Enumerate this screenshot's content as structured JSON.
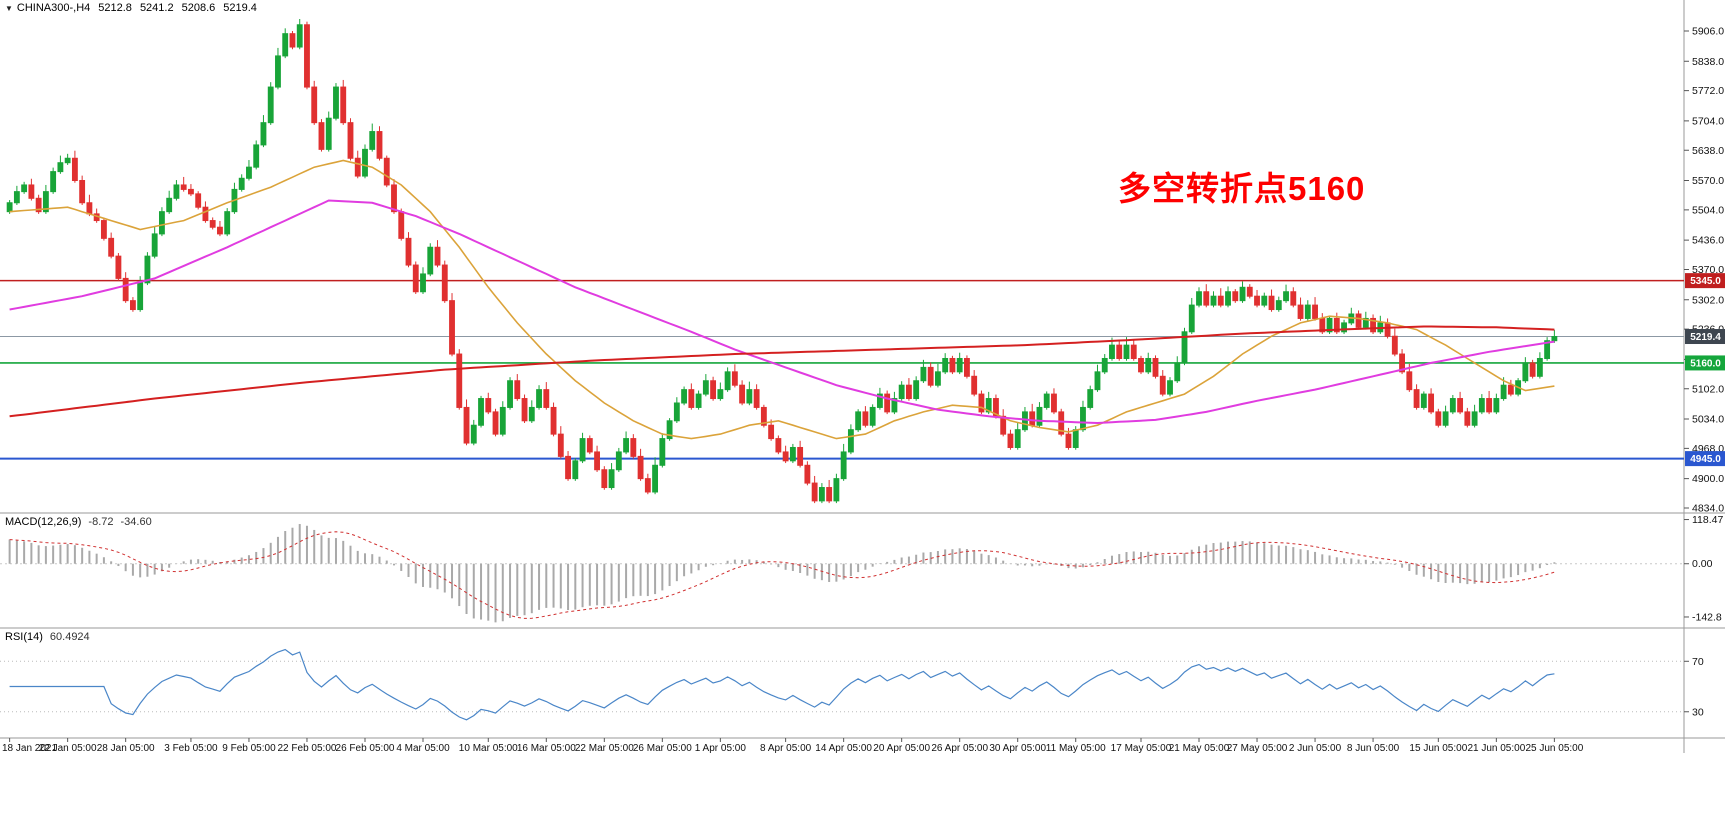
{
  "header": {
    "symbol": "CHINA300-,H4",
    "open": "5212.8",
    "high": "5241.2",
    "low": "5208.6",
    "close": "5219.4"
  },
  "annotation": {
    "text": "多空转折点5160",
    "color": "#fe0000"
  },
  "indicators": {
    "macd": {
      "label": "MACD(12,26,9)",
      "value": "-8.72",
      "signal_value": "-34.60",
      "ticks": [
        "118.47",
        "0.00",
        "-142.8"
      ],
      "tick_values": [
        118.47,
        0,
        -142.8
      ],
      "range": [
        -167,
        128
      ]
    },
    "rsi": {
      "label": "RSI(14)",
      "value": "60.4924",
      "ticks": [
        "70",
        "30"
      ],
      "tick_values": [
        70,
        30
      ],
      "range": [
        10,
        94
      ]
    }
  },
  "price_axis": {
    "ticks": [
      5906,
      5838,
      5772,
      5704,
      5638,
      5570,
      5504,
      5436,
      5370,
      5302,
      5236,
      5168,
      5102,
      5034,
      4968,
      4900,
      4834
    ],
    "max": 5906,
    "min": 4834
  },
  "levels": [
    {
      "label": "5345.0",
      "value": 5345.0,
      "color": "#c01f1f",
      "width": 1.6
    },
    {
      "label": "5219.4",
      "value": 5219.4,
      "color": "#8c98a4",
      "width": 1,
      "badge_color": "#3e4650"
    },
    {
      "label": "5160.0",
      "value": 5160.0,
      "color": "#15a63c",
      "width": 1.6
    },
    {
      "label": "4945.0",
      "value": 4945.0,
      "color": "#2a57d0",
      "width": 2
    }
  ],
  "time_axis": {
    "labels": [
      "18 Jan 2021",
      "22 Jan 05:00",
      "28 Jan 05:00",
      "3 Feb 05:00",
      "9 Feb 05:00",
      "22 Feb 05:00",
      "26 Feb 05:00",
      "4 Mar 05:00",
      "10 Mar 05:00",
      "16 Mar 05:00",
      "22 Mar 05:00",
      "26 Mar 05:00",
      "1 Apr 05:00",
      "8 Apr 05:00",
      "14 Apr 05:00",
      "20 Apr 05:00",
      "26 Apr 05:00",
      "30 Apr 05:00",
      "11 May 05:00",
      "17 May 05:00",
      "21 May 05:00",
      "27 May 05:00",
      "2 Jun 05:00",
      "8 Jun 05:00",
      "15 Jun 05:00",
      "21 Jun 05:00",
      "25 Jun 05:00"
    ]
  },
  "colors": {
    "up": "#18a438",
    "down": "#e03030",
    "macd_hist": "#a9a9a9",
    "macd_signal": "#d03030",
    "rsi_line": "#4a86c8"
  },
  "chart_data": {
    "type": "candlestick",
    "symbol": "CHINA300-",
    "timeframe": "H4",
    "title": "CHINA300- H4 candlestick chart with MACD(12,26,9) and RSI(14)",
    "ylim": [
      4834,
      5906
    ],
    "last_ohlc": {
      "open": 5212.8,
      "high": 5241.2,
      "low": 5208.6,
      "close": 5219.4
    },
    "key_levels": {
      "resistance_red": 5345.0,
      "current_price": 5219.4,
      "pivot_green": 5160.0,
      "support_blue": 4945.0
    },
    "closes": [
      5520,
      5545,
      5560,
      5530,
      5500,
      5545,
      5590,
      5610,
      5620,
      5570,
      5520,
      5495,
      5480,
      5440,
      5400,
      5350,
      5300,
      5280,
      5340,
      5400,
      5450,
      5500,
      5530,
      5560,
      5550,
      5540,
      5510,
      5480,
      5465,
      5450,
      5500,
      5550,
      5575,
      5600,
      5650,
      5700,
      5780,
      5850,
      5900,
      5870,
      5920,
      5780,
      5700,
      5640,
      5710,
      5780,
      5700,
      5620,
      5580,
      5640,
      5680,
      5620,
      5560,
      5500,
      5440,
      5380,
      5320,
      5360,
      5420,
      5380,
      5300,
      5180,
      5060,
      4980,
      5020,
      5080,
      5050,
      5000,
      5060,
      5120,
      5080,
      5030,
      5060,
      5100,
      5060,
      5000,
      4950,
      4900,
      4940,
      4990,
      4960,
      4920,
      4880,
      4920,
      4960,
      4990,
      4950,
      4900,
      4870,
      4930,
      4990,
      5030,
      5070,
      5100,
      5060,
      5090,
      5120,
      5080,
      5100,
      5140,
      5110,
      5070,
      5100,
      5060,
      5020,
      4990,
      4960,
      4940,
      4970,
      4930,
      4890,
      4850,
      4880,
      4850,
      4900,
      4960,
      5010,
      5050,
      5020,
      5060,
      5090,
      5050,
      5080,
      5110,
      5080,
      5120,
      5150,
      5110,
      5140,
      5170,
      5140,
      5170,
      5130,
      5090,
      5050,
      5080,
      5040,
      5000,
      4970,
      5010,
      5050,
      5020,
      5060,
      5090,
      5050,
      5000,
      4970,
      5010,
      5060,
      5100,
      5140,
      5170,
      5200,
      5170,
      5200,
      5170,
      5140,
      5170,
      5130,
      5090,
      5120,
      5160,
      5230,
      5290,
      5320,
      5290,
      5310,
      5290,
      5320,
      5300,
      5330,
      5310,
      5290,
      5310,
      5280,
      5300,
      5320,
      5290,
      5260,
      5290,
      5260,
      5230,
      5260,
      5230,
      5250,
      5270,
      5240,
      5260,
      5230,
      5250,
      5220,
      5180,
      5140,
      5100,
      5060,
      5090,
      5050,
      5020,
      5050,
      5080,
      5050,
      5020,
      5050,
      5080,
      5050,
      5080,
      5110,
      5090,
      5120,
      5160,
      5130,
      5170,
      5210,
      5219.4
    ],
    "moving_averages": [
      {
        "name": "ma-fast-orange",
        "color": "#dba33a",
        "width": 1.6,
        "anchors": [
          [
            0,
            5500
          ],
          [
            8,
            5510
          ],
          [
            14,
            5480
          ],
          [
            18,
            5460
          ],
          [
            24,
            5480
          ],
          [
            30,
            5520
          ],
          [
            36,
            5555
          ],
          [
            42,
            5600
          ],
          [
            46,
            5615
          ],
          [
            50,
            5600
          ],
          [
            54,
            5560
          ],
          [
            58,
            5500
          ],
          [
            62,
            5420
          ],
          [
            66,
            5330
          ],
          [
            70,
            5250
          ],
          [
            74,
            5180
          ],
          [
            78,
            5120
          ],
          [
            82,
            5070
          ],
          [
            86,
            5030
          ],
          [
            90,
            5000
          ],
          [
            94,
            4990
          ],
          [
            98,
            5000
          ],
          [
            102,
            5020
          ],
          [
            106,
            5030
          ],
          [
            110,
            5010
          ],
          [
            114,
            4990
          ],
          [
            118,
            5000
          ],
          [
            122,
            5030
          ],
          [
            126,
            5050
          ],
          [
            130,
            5065
          ],
          [
            134,
            5060
          ],
          [
            138,
            5030
          ],
          [
            142,
            5015
          ],
          [
            146,
            5005
          ],
          [
            150,
            5020
          ],
          [
            154,
            5050
          ],
          [
            158,
            5070
          ],
          [
            162,
            5090
          ],
          [
            166,
            5130
          ],
          [
            170,
            5180
          ],
          [
            174,
            5220
          ],
          [
            178,
            5250
          ],
          [
            182,
            5265
          ],
          [
            186,
            5260
          ],
          [
            190,
            5250
          ],
          [
            194,
            5235
          ],
          [
            198,
            5200
          ],
          [
            202,
            5160
          ],
          [
            206,
            5120
          ],
          [
            209,
            5098
          ],
          [
            213,
            5108
          ]
        ]
      },
      {
        "name": "ma-mid-magenta",
        "color": "#e03ce0",
        "width": 2,
        "anchors": [
          [
            0,
            5280
          ],
          [
            10,
            5310
          ],
          [
            20,
            5350
          ],
          [
            30,
            5420
          ],
          [
            38,
            5480
          ],
          [
            44,
            5525
          ],
          [
            50,
            5520
          ],
          [
            56,
            5490
          ],
          [
            62,
            5450
          ],
          [
            70,
            5390
          ],
          [
            78,
            5330
          ],
          [
            86,
            5280
          ],
          [
            94,
            5230
          ],
          [
            100,
            5190
          ],
          [
            107,
            5150
          ],
          [
            114,
            5110
          ],
          [
            121,
            5080
          ],
          [
            128,
            5055
          ],
          [
            135,
            5040
          ],
          [
            142,
            5030
          ],
          [
            150,
            5025
          ],
          [
            158,
            5032
          ],
          [
            165,
            5050
          ],
          [
            172,
            5075
          ],
          [
            180,
            5100
          ],
          [
            188,
            5130
          ],
          [
            196,
            5160
          ],
          [
            204,
            5185
          ],
          [
            213,
            5208
          ]
        ]
      },
      {
        "name": "ma-slow-red",
        "color": "#d42020",
        "width": 2,
        "anchors": [
          [
            0,
            5040
          ],
          [
            20,
            5080
          ],
          [
            40,
            5115
          ],
          [
            60,
            5145
          ],
          [
            80,
            5165
          ],
          [
            100,
            5180
          ],
          [
            120,
            5190
          ],
          [
            140,
            5200
          ],
          [
            155,
            5212
          ],
          [
            170,
            5226
          ],
          [
            185,
            5236
          ],
          [
            195,
            5242
          ],
          [
            205,
            5240
          ],
          [
            213,
            5235
          ]
        ]
      }
    ],
    "macd": {
      "current": -8.72,
      "signal": -34.6,
      "axis_max": 118.47,
      "axis_min": -142.8
    },
    "rsi": {
      "current": 60.4924,
      "levels": [
        70,
        30
      ]
    }
  }
}
